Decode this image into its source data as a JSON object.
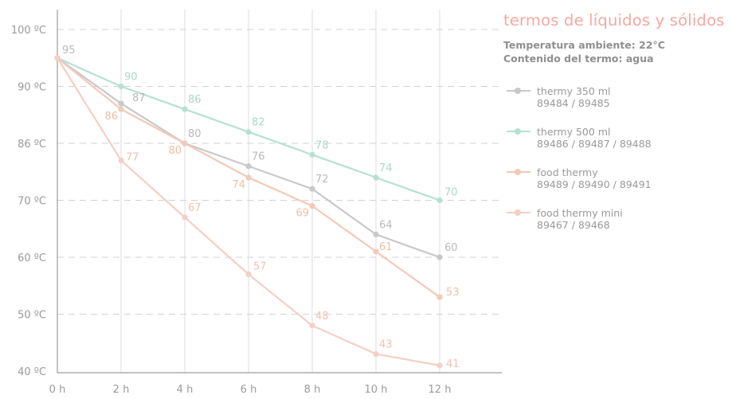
{
  "chart_data": {
    "type": "line",
    "title": "termos de líquidos y sólidos",
    "subtitle": [
      "Temperatura ambiente: 22°C",
      "Contenido del termo: agua"
    ],
    "x": [
      "0 h",
      "2 h",
      "4 h",
      "6 h",
      "8 h",
      "10 h",
      "12 h"
    ],
    "y_tick_labels": [
      "40 ºC",
      "50 ºC",
      "60 ºC",
      "70 ºC",
      "86 ºC",
      "90 ºC",
      "100 ºC"
    ],
    "ylim": [
      40,
      100
    ],
    "grid": true,
    "legend_position": "right",
    "series": [
      {
        "name": "thermy 350 ml",
        "codes": "89484 / 89485",
        "color": "#c8c8c8",
        "values": [
          95,
          87,
          80,
          76,
          72,
          64,
          60
        ]
      },
      {
        "name": "thermy 500 ml",
        "codes": "89486 / 89487 / 89488",
        "color": "#b6e0d3",
        "values": [
          95,
          90,
          86,
          82,
          78,
          74,
          70
        ]
      },
      {
        "name": "food thermy",
        "codes": "89489 / 89490 / 89491",
        "color": "#f3c9b8",
        "values": [
          95,
          86,
          80,
          74,
          69,
          61,
          53
        ]
      },
      {
        "name": "food thermy mini",
        "codes": "89467 / 89468",
        "color": "#f5cfc4",
        "values": [
          95,
          77,
          67,
          57,
          48,
          43,
          41
        ]
      }
    ]
  }
}
